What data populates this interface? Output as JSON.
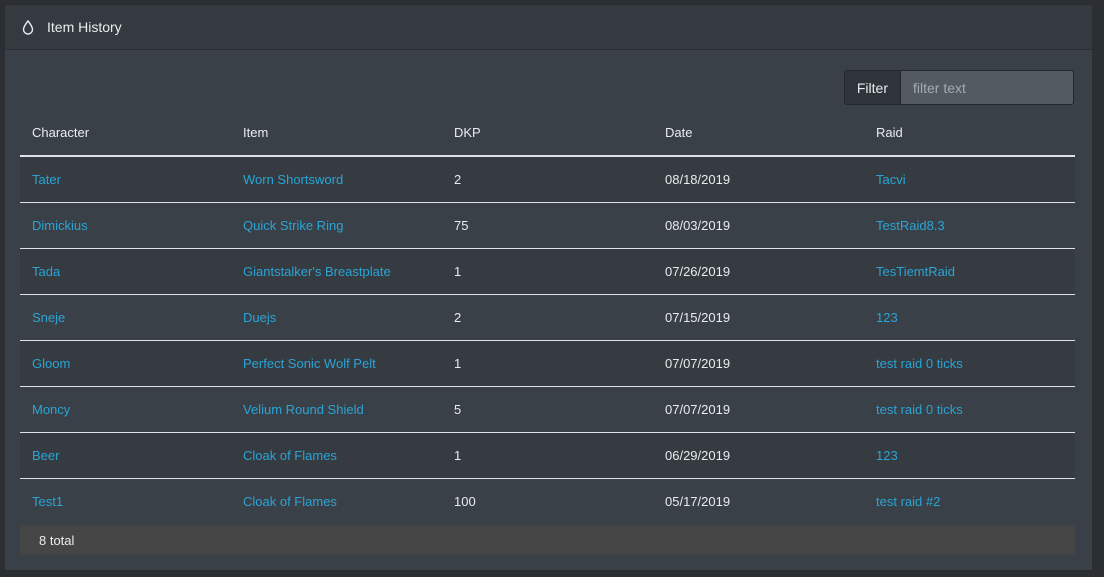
{
  "header": {
    "icon": "droplet-icon",
    "title": "Item History"
  },
  "filter": {
    "label": "Filter",
    "value": "",
    "placeholder": "filter text"
  },
  "table": {
    "columns": [
      "Character",
      "Item",
      "DKP",
      "Date",
      "Raid"
    ],
    "rows": [
      {
        "character": "Tater",
        "item": "Worn Shortsword",
        "dkp": "2",
        "date": "08/18/2019",
        "raid": "Tacvi"
      },
      {
        "character": "Dimickius",
        "item": "Quick Strike Ring",
        "dkp": "75",
        "date": "08/03/2019",
        "raid": "TestRaid8.3"
      },
      {
        "character": "Tada",
        "item": "Giantstalker's Breastplate",
        "dkp": "1",
        "date": "07/26/2019",
        "raid": "TesTiemtRaid"
      },
      {
        "character": "Sneje",
        "item": "Duejs",
        "dkp": "2",
        "date": "07/15/2019",
        "raid": "123"
      },
      {
        "character": "Gloom",
        "item": "Perfect Sonic Wolf Pelt",
        "dkp": "1",
        "date": "07/07/2019",
        "raid": "test raid 0 ticks"
      },
      {
        "character": "Moncy",
        "item": "Velium Round Shield",
        "dkp": "5",
        "date": "07/07/2019",
        "raid": "test raid 0 ticks"
      },
      {
        "character": "Beer",
        "item": "Cloak of Flames",
        "dkp": "1",
        "date": "06/29/2019",
        "raid": "123"
      },
      {
        "character": "Test1",
        "item": "Cloak of Flames",
        "dkp": "100",
        "date": "05/17/2019",
        "raid": "test raid #2"
      }
    ]
  },
  "footer": {
    "total_text": "8 total"
  },
  "colors": {
    "link": "#2aa4d6",
    "background": "#3a4047",
    "header": "#343a40"
  }
}
